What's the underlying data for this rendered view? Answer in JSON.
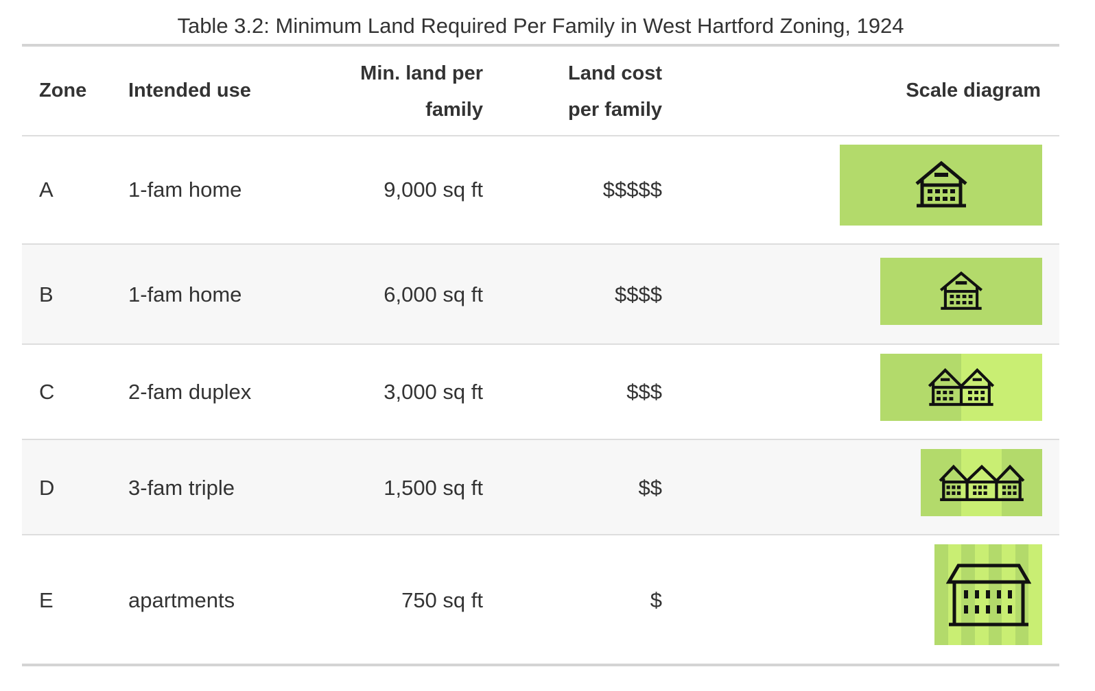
{
  "caption": "Table 3.2: Minimum Land Required Per Family in West Hartford Zoning, 1924",
  "headers": {
    "zone": "Zone",
    "use": "Intended use",
    "land_line1": "Min. land per",
    "land_line2": "family",
    "cost_line1": "Land cost",
    "cost_line2": "per family",
    "scale": "Scale diagram"
  },
  "rows": [
    {
      "zone": "A",
      "use": "1-fam home",
      "land": "9,000 sq ft",
      "cost": "$$$$$",
      "diagram": {
        "icon": "house-icon",
        "houses": 1,
        "color": "#b3da6b"
      }
    },
    {
      "zone": "B",
      "use": "1-fam home",
      "land": "6,000 sq ft",
      "cost": "$$$$",
      "diagram": {
        "icon": "house-icon",
        "houses": 1,
        "color": "#b3da6b"
      }
    },
    {
      "zone": "C",
      "use": "2-fam duplex",
      "land": "3,000 sq ft",
      "cost": "$$$",
      "diagram": {
        "icon": "duplex-icon",
        "houses": 2,
        "color": "#b3da6b"
      }
    },
    {
      "zone": "D",
      "use": "3-fam triple",
      "land": "1,500 sq ft",
      "cost": "$$",
      "diagram": {
        "icon": "triple-house-icon",
        "houses": 3,
        "color": "#b3da6b"
      }
    },
    {
      "zone": "E",
      "use": "apartments",
      "land": "750 sq ft",
      "cost": "$",
      "diagram": {
        "icon": "apartment-building-icon",
        "houses": 1,
        "color": "#b3da6b"
      }
    }
  ],
  "colors": {
    "lot_green": "#b3da6b",
    "lot_green_light": "#c9ee73",
    "row_alt": "#f7f7f7",
    "rule": "#d4d4d4",
    "text": "#333333"
  }
}
